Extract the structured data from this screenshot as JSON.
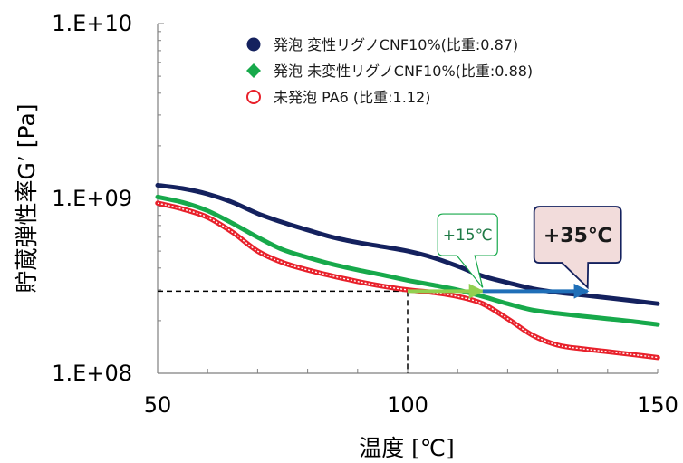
{
  "chart_data": {
    "type": "line",
    "xlabel": "温度 [℃]",
    "ylabel": "貯蔵弾性率G’ [Pa]",
    "xlim": [
      50,
      150
    ],
    "ylim": [
      100000000.0,
      10000000000.0
    ],
    "yscale": "log",
    "x_ticks": [
      "50",
      "100",
      "150"
    ],
    "y_ticks": [
      "1.E+08",
      "1.E+09",
      "1.E+10"
    ],
    "grid": false,
    "legend_position": "top-center",
    "series": [
      {
        "name": "発泡 変性リグノCNF10%(比重:0.87)",
        "color": "#14215e",
        "marker": "circle-filled",
        "x": [
          50,
          55,
          60,
          65,
          70,
          75,
          80,
          85,
          90,
          95,
          100,
          105,
          110,
          115,
          120,
          125,
          130,
          135,
          140,
          145,
          150
        ],
        "y": [
          1190000000.0,
          1140000000.0,
          1060000000.0,
          950000000.0,
          820000000.0,
          730000000.0,
          660000000.0,
          600000000.0,
          560000000.0,
          530000000.0,
          500000000.0,
          460000000.0,
          410000000.0,
          360000000.0,
          330000000.0,
          305000000.0,
          290000000.0,
          280000000.0,
          270000000.0,
          260000000.0,
          250000000.0
        ]
      },
      {
        "name": "発泡 未変性リグノCNF10%(比重:0.88)",
        "color": "#17a94b",
        "marker": "diamond-filled",
        "x": [
          50,
          55,
          60,
          65,
          70,
          75,
          80,
          85,
          90,
          95,
          100,
          105,
          110,
          115,
          120,
          125,
          130,
          135,
          140,
          145,
          150
        ],
        "y": [
          1020000000.0,
          950000000.0,
          850000000.0,
          720000000.0,
          600000000.0,
          510000000.0,
          460000000.0,
          420000000.0,
          390000000.0,
          365000000.0,
          340000000.0,
          320000000.0,
          300000000.0,
          275000000.0,
          250000000.0,
          230000000.0,
          220000000.0,
          212000000.0,
          205000000.0,
          198000000.0,
          190000000.0
        ]
      },
      {
        "name": "未発泡 PA6 (比重:1.12)",
        "color": "#e8212b",
        "marker": "circle-open",
        "x": [
          50,
          55,
          60,
          65,
          70,
          75,
          80,
          85,
          90,
          95,
          100,
          105,
          110,
          115,
          120,
          125,
          130,
          135,
          140,
          145,
          150
        ],
        "y": [
          940000000.0,
          870000000.0,
          780000000.0,
          640000000.0,
          500000000.0,
          430000000.0,
          390000000.0,
          360000000.0,
          335000000.0,
          315000000.0,
          300000000.0,
          290000000.0,
          275000000.0,
          250000000.0,
          205000000.0,
          165000000.0,
          145000000.0,
          138000000.0,
          133000000.0,
          128000000.0,
          123000000.0
        ]
      }
    ],
    "reference": {
      "x": 100,
      "y": 295000000.0,
      "color": "#000000"
    },
    "arrows": [
      {
        "from_x": 100,
        "to_x": 115,
        "y": 295000000.0,
        "color": "#92d050"
      },
      {
        "from_x": 115,
        "to_x": 136,
        "y": 295000000.0,
        "color": "#1f6fb8"
      }
    ],
    "annotations": [
      {
        "text": "+15℃",
        "x": 112,
        "y": 620000000.0,
        "style": "small",
        "border": "#17a94b",
        "fill": "#ffffff"
      },
      {
        "text": "+35℃",
        "x": 134,
        "y": 620000000.0,
        "style": "big",
        "border": "#14215e",
        "fill": "#f2dcdb"
      }
    ]
  }
}
